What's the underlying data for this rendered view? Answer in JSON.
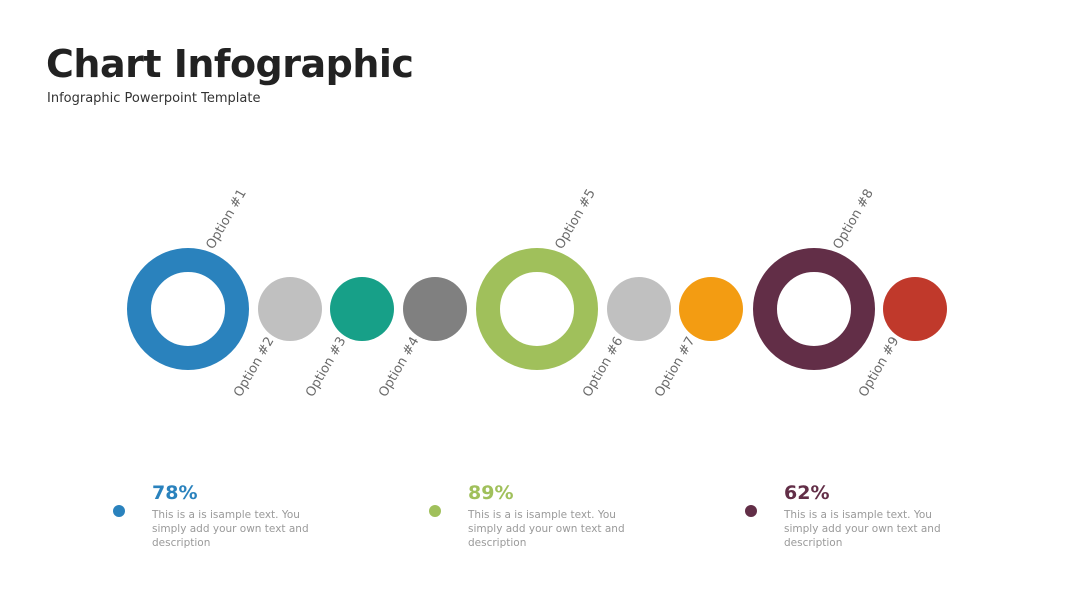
{
  "header": {
    "title": "Chart Infographic",
    "subtitle": "Infographic Powerpoint Template"
  },
  "options": [
    {
      "label": "Option #1",
      "color": "#2a82bd"
    },
    {
      "label": "Option #2",
      "color": "#c0c0c0"
    },
    {
      "label": "Option #3",
      "color": "#17a088"
    },
    {
      "label": "Option #4",
      "color": "#808080"
    },
    {
      "label": "Option #5",
      "color": "#a0c05b"
    },
    {
      "label": "Option #6",
      "color": "#c0c0c0"
    },
    {
      "label": "Option #7",
      "color": "#f39c12"
    },
    {
      "label": "Option #8",
      "color": "#622e47"
    },
    {
      "label": "Option #9",
      "color": "#c0392b"
    }
  ],
  "stats": [
    {
      "value": "78%",
      "text": "This is a is isample text. You simply add your own text and description",
      "color": "#2a82bd"
    },
    {
      "value": "89%",
      "text": "This is a is isample text. You simply add your own text and description",
      "color": "#a0c05b"
    },
    {
      "value": "62%",
      "text": "This is a is isample text. You simply add your own text and description",
      "color": "#622e47"
    }
  ]
}
